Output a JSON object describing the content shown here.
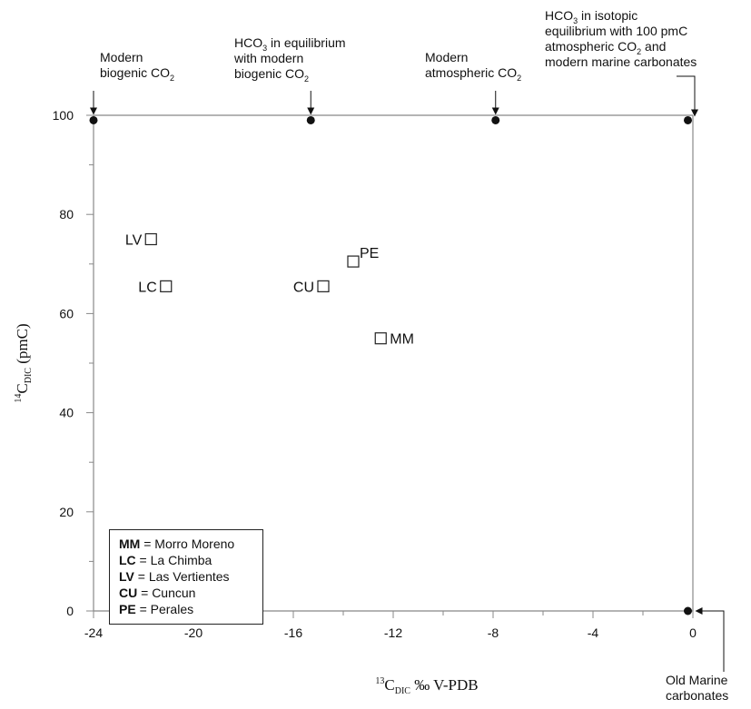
{
  "chart_data": {
    "type": "scatter",
    "xlabel": {
      "iso": "13",
      "main": "C",
      "sub": "DIC",
      "rest": " ‰ V-PDB"
    },
    "ylabel": {
      "iso": "14",
      "main": "C",
      "sub": "DIC",
      "rest": " (pmC)"
    },
    "xlim": [
      -24,
      0
    ],
    "ylim": [
      0,
      100
    ],
    "x_ticks": [
      -24,
      -20,
      -16,
      -12,
      -8,
      -4,
      0
    ],
    "x_tick_labels": [
      "-24",
      "-20",
      "-16",
      "-12",
      "-8",
      "-4",
      "0"
    ],
    "y_ticks": [
      0,
      20,
      40,
      60,
      80,
      100
    ],
    "y_tick_labels": [
      "0",
      "20",
      "40",
      "60",
      "80",
      "100"
    ],
    "grid": false,
    "samples": [
      {
        "label": "LV",
        "x": -21.7,
        "y": 75,
        "label_side": "left"
      },
      {
        "label": "LC",
        "x": -21.1,
        "y": 65.5,
        "label_side": "left"
      },
      {
        "label": "PE",
        "x": -13.6,
        "y": 70.5,
        "label_side": "right-up"
      },
      {
        "label": "CU",
        "x": -14.8,
        "y": 65.5,
        "label_side": "left"
      },
      {
        "label": "MM",
        "x": -12.5,
        "y": 55,
        "label_side": "right"
      }
    ],
    "reference_points": [
      {
        "x": -24,
        "y": 99
      },
      {
        "x": -15.3,
        "y": 99
      },
      {
        "x": -7.9,
        "y": 99
      },
      {
        "x": -0.2,
        "y": 99
      },
      {
        "x": -0.2,
        "y": 0
      }
    ],
    "annotations": [
      {
        "lines": [
          {
            "t": "Modern"
          },
          {
            "t": "biogenic CO",
            "sub": "2"
          }
        ]
      },
      {
        "lines": [
          {
            "t": "HCO",
            "sub": "3",
            "after": " in equilibrium"
          },
          {
            "t": "with modern"
          },
          {
            "t": "biogenic CO",
            "sub": "2"
          }
        ]
      },
      {
        "lines": [
          {
            "t": "Modern"
          },
          {
            "t": "atmospheric CO",
            "sub": "2"
          }
        ]
      },
      {
        "lines": [
          {
            "t": "HCO",
            "sub": "3",
            "after": " in isotopic"
          },
          {
            "t": "equilibrium with 100 pmC"
          },
          {
            "t": "atmospheric CO",
            "sub": "2",
            "after": " and"
          },
          {
            "t": "modern marine carbonates"
          }
        ]
      },
      {
        "lines": [
          {
            "t": "Old Marine"
          },
          {
            "t": "carbonates"
          }
        ]
      }
    ],
    "legend": [
      {
        "abbr": "MM",
        "name": " = Morro Moreno"
      },
      {
        "abbr": "LC",
        "name": " = La Chimba"
      },
      {
        "abbr": "LV",
        "name": " = Las Vertientes"
      },
      {
        "abbr": "CU",
        "name": " = Cuncun"
      },
      {
        "abbr": "PE",
        "name": " = Perales"
      }
    ]
  }
}
